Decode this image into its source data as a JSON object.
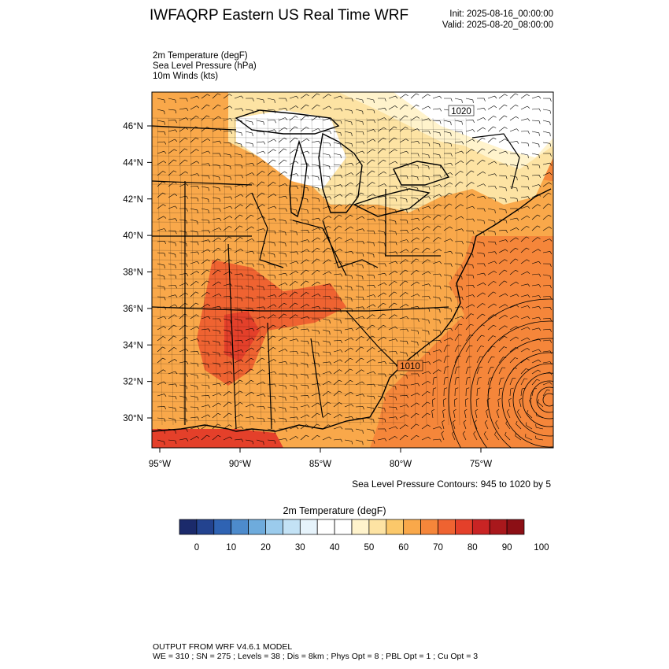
{
  "header": {
    "title": "IWFAQRP Eastern US Real Time WRF",
    "init": "Init: 2025-08-16_00:00:00",
    "valid": "Valid: 2025-08-20_08:00:00"
  },
  "fields": [
    "2m Temperature   (degF)",
    "Sea Level Pressure   (hPa)",
    "10m Winds   (kts)"
  ],
  "map": {
    "lat_labels": [
      "46°N",
      "44°N",
      "42°N",
      "40°N",
      "38°N",
      "36°N",
      "34°N",
      "32°N",
      "30°N"
    ],
    "lat_values": [
      46,
      44,
      42,
      40,
      38,
      36,
      34,
      32,
      30
    ],
    "lon_labels": [
      "95°W",
      "90°W",
      "85°W",
      "80°W",
      "75°W"
    ],
    "lon_values": [
      -95,
      -90,
      -85,
      -80,
      -75
    ],
    "isobar_labels": [
      "1020",
      "1010"
    ],
    "contour_note": "Sea Level Pressure Contours: 945 to 1020 by 5"
  },
  "colorbar": {
    "title": "2m Temperature  (degF)",
    "tick_labels": [
      "0",
      "10",
      "20",
      "30",
      "40",
      "50",
      "60",
      "70",
      "80",
      "90",
      "100"
    ],
    "colors": [
      "#1b2a6b",
      "#23438f",
      "#2f63b3",
      "#4d8bcc",
      "#6eabdc",
      "#9bcbec",
      "#c3e2f5",
      "#e6f3fb",
      "#ffffff",
      "#ffffff",
      "#fff3cc",
      "#fde3a3",
      "#fbc86a",
      "#f9a84a",
      "#f5863a",
      "#ef6331",
      "#e4402a",
      "#c92424",
      "#a9181c",
      "#8c0f15"
    ]
  },
  "footer": {
    "line1": "OUTPUT FROM WRF V4.6.1 MODEL",
    "line2": "WE = 310 ; SN = 275 ; Levels = 38 ; Dis = 8km ; Phys Opt = 8 ; PBL Opt = 1 ; Cu Opt = 3"
  }
}
